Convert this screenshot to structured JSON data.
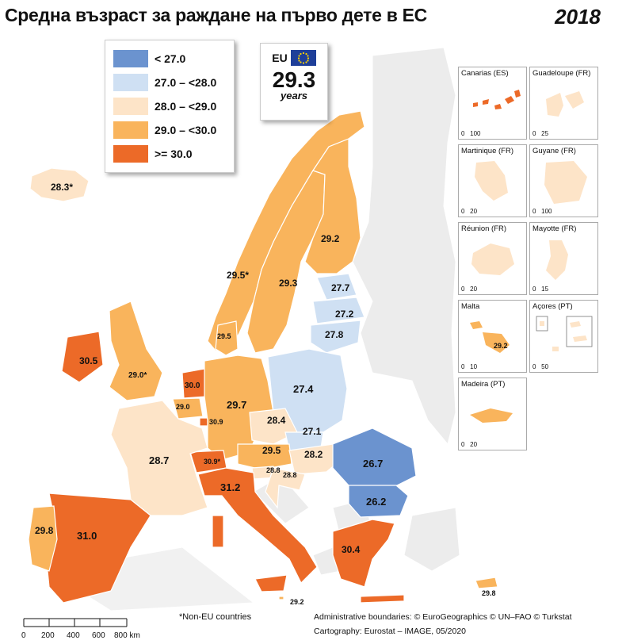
{
  "title": "Средна възраст за раждане на първо дете в ЕС",
  "year": "2018",
  "legend": [
    {
      "label": "< 27.0",
      "color": "#6b93cf"
    },
    {
      "label": "27.0 – <28.0",
      "color": "#cfe0f3"
    },
    {
      "label": "28.0 – <29.0",
      "color": "#fde4c8"
    },
    {
      "label": "29.0 – <30.0",
      "color": "#f9b45c"
    },
    {
      "label": ">= 30.0",
      "color": "#ec6a28"
    }
  ],
  "eu_box": {
    "label": "EU",
    "value": "29.3",
    "unit": "years"
  },
  "values": {
    "iceland": "28.3*",
    "norway": "29.5*",
    "sweden": "29.3",
    "finland": "29.2",
    "estonia": "27.7",
    "latvia": "27.2",
    "lithuania": "27.8",
    "denmark": "29.5",
    "ireland": "30.5",
    "uk": "29.0*",
    "netherlands": "30.0",
    "belgium": "29.0",
    "luxembourg": "30.9",
    "germany": "29.7",
    "poland": "27.4",
    "czechia": "28.4",
    "slovakia": "27.1",
    "austria": "29.5",
    "hungary": "28.2",
    "slovenia": "28.8",
    "croatia": "28.8",
    "switzerland": "30.9*",
    "france": "28.7",
    "italy": "31.2",
    "spain": "31.0",
    "portugal": "29.8",
    "romania": "26.7",
    "bulgaria": "26.2",
    "greece": "30.4",
    "malta_main": "29.2",
    "cyprus": "29.8",
    "malta_inset": "29.2"
  },
  "insets": [
    {
      "name": "Canarias (ES)",
      "scale": [
        "0",
        "100"
      ]
    },
    {
      "name": "Guadeloupe (FR)",
      "scale": [
        "0",
        "25"
      ]
    },
    {
      "name": "Martinique (FR)",
      "scale": [
        "0",
        "20"
      ]
    },
    {
      "name": "Guyane (FR)",
      "scale": [
        "0",
        "100"
      ]
    },
    {
      "name": "Réunion (FR)",
      "scale": [
        "0",
        "20"
      ]
    },
    {
      "name": "Mayotte (FR)",
      "scale": [
        "0",
        "15"
      ]
    },
    {
      "name": "Malta",
      "scale": [
        "0",
        "10"
      ]
    },
    {
      "name": "Açores (PT)",
      "scale": [
        "0",
        "50"
      ]
    },
    {
      "name": "Madeira (PT)",
      "scale": [
        "0",
        "20"
      ]
    }
  ],
  "footnote": "*Non-EU countries",
  "credits": {
    "line1": "Administrative boundaries: © EuroGeographics © UN–FAO © Turkstat",
    "line2": "Cartography: Eurostat – IMAGE, 05/2020"
  },
  "scale": {
    "labels": [
      "0",
      "200",
      "400",
      "600",
      "800 km"
    ]
  }
}
